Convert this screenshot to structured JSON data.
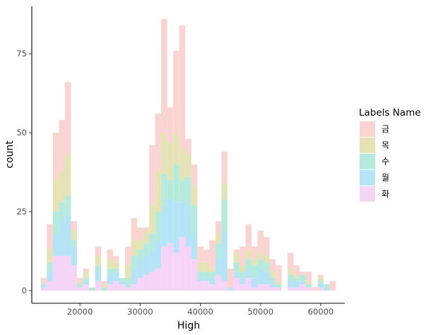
{
  "chart_data": {
    "type": "bar",
    "subtype": "stacked-histogram",
    "xlabel": "High",
    "ylabel": "count",
    "xlim": [
      12000,
      64000
    ],
    "ylim": [
      -4,
      90
    ],
    "bin_width": 1000,
    "x_ticks": [
      20000,
      30000,
      40000,
      50000,
      60000
    ],
    "x_tick_labels": [
      "20000",
      "30000",
      "40000",
      "50000",
      "60000"
    ],
    "y_ticks": [
      0,
      25,
      50,
      75
    ],
    "y_tick_labels": [
      "0",
      "25",
      "50",
      "75"
    ],
    "grid": false,
    "legend": {
      "title": "Labels Name",
      "position": "right",
      "items": [
        {
          "label": "금",
          "color": "#FAD4D0"
        },
        {
          "label": "목",
          "color": "#E5E2B5"
        },
        {
          "label": "수",
          "color": "#B5EADD"
        },
        {
          "label": "월",
          "color": "#B5E4F7"
        },
        {
          "label": "화",
          "color": "#F6D4F8"
        }
      ]
    },
    "stack_order_bottom_to_top": [
      "화",
      "월",
      "수",
      "목",
      "금"
    ],
    "bin_centers": [
      14000,
      15000,
      16000,
      17000,
      18000,
      19000,
      20000,
      21000,
      22000,
      23000,
      24000,
      25000,
      26000,
      27000,
      28000,
      29000,
      30000,
      31000,
      32000,
      33000,
      34000,
      35000,
      36000,
      37000,
      38000,
      39000,
      40000,
      41000,
      42000,
      43000,
      44000,
      45000,
      46000,
      47000,
      48000,
      49000,
      50000,
      51000,
      52000,
      53000,
      54000,
      55000,
      56000,
      57000,
      58000,
      59000,
      60000,
      61000,
      62000
    ],
    "series": [
      {
        "name": "화",
        "color": "#F6D4F8",
        "values": [
          1,
          3,
          11,
          11,
          11,
          8,
          1,
          2,
          0,
          3,
          0,
          2,
          3,
          2,
          1,
          2,
          4,
          5,
          6,
          7,
          14,
          15,
          12,
          17,
          14,
          10,
          3,
          3,
          2,
          5,
          3,
          0,
          4,
          2,
          4,
          1,
          2,
          2,
          1,
          1,
          0,
          1,
          1,
          2,
          1,
          0,
          1,
          0,
          0
        ]
      },
      {
        "name": "월",
        "color": "#B5E4F7",
        "values": [
          1,
          3,
          7,
          11,
          13,
          6,
          0,
          1,
          0,
          3,
          0,
          3,
          3,
          1,
          1,
          5,
          6,
          6,
          7,
          9,
          13,
          14,
          16,
          11,
          13,
          8,
          1,
          1,
          2,
          5,
          16,
          1,
          2,
          2,
          3,
          3,
          5,
          4,
          1,
          0,
          0,
          2,
          2,
          1,
          0,
          0,
          1,
          1,
          0
        ]
      },
      {
        "name": "수",
        "color": "#B5EADD",
        "values": [
          0,
          3,
          7,
          6,
          6,
          2,
          1,
          1,
          1,
          2,
          1,
          2,
          1,
          1,
          2,
          4,
          3,
          4,
          5,
          9,
          10,
          6,
          12,
          7,
          9,
          9,
          2,
          2,
          2,
          5,
          10,
          0,
          3,
          2,
          3,
          4,
          3,
          3,
          2,
          1,
          0,
          2,
          1,
          2,
          1,
          0,
          1,
          1,
          0
        ]
      },
      {
        "name": "목",
        "color": "#E5E2B5",
        "values": [
          0,
          4,
          10,
          10,
          13,
          3,
          1,
          2,
          0,
          3,
          1,
          3,
          2,
          0,
          4,
          5,
          3,
          4,
          9,
          13,
          13,
          12,
          10,
          10,
          7,
          6,
          3,
          3,
          1,
          3,
          5,
          0,
          3,
          2,
          3,
          2,
          2,
          2,
          2,
          1,
          0,
          2,
          1,
          0,
          1,
          0,
          1,
          0,
          0
        ]
      },
      {
        "name": "금",
        "color": "#FAD4D0",
        "values": [
          2,
          8,
          15,
          16,
          23,
          3,
          1,
          1,
          0,
          3,
          1,
          3,
          2,
          0,
          6,
          7,
          4,
          1,
          19,
          18,
          36,
          11,
          26,
          39,
          5,
          7,
          5,
          4,
          9,
          4,
          10,
          6,
          1,
          6,
          8,
          4,
          7,
          6,
          4,
          5,
          0,
          5,
          3,
          1,
          3,
          1,
          1,
          0,
          3
        ]
      }
    ]
  }
}
